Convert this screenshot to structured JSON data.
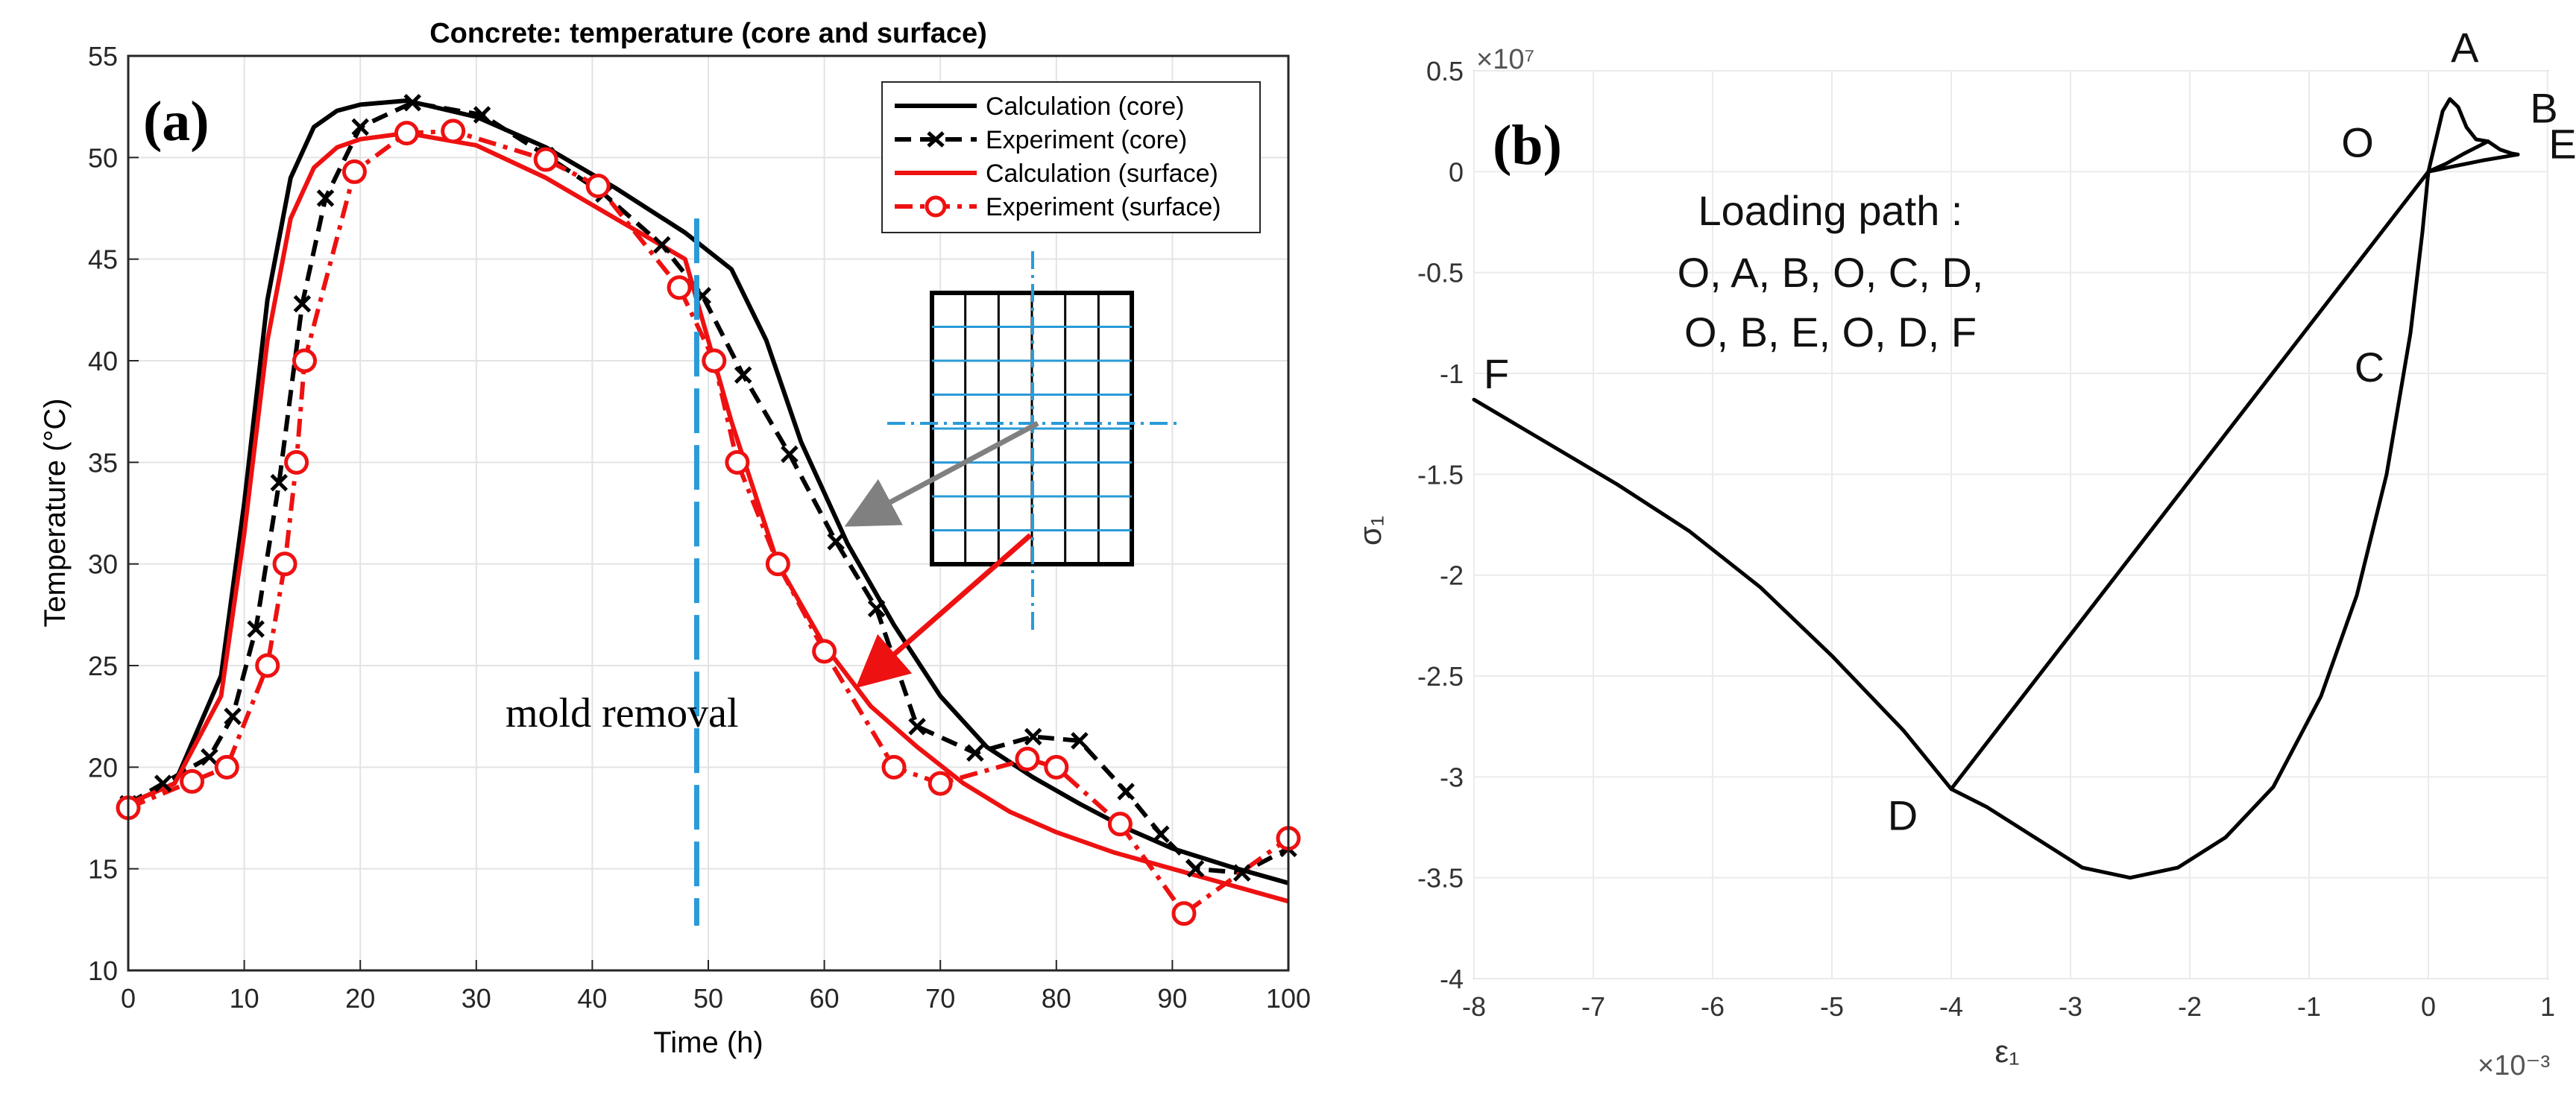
{
  "panels": [
    {
      "label": "(a)",
      "title": "Concrete: temperature (core and surface)",
      "xlabel": "Time (h)",
      "ylabel": "Temperature (°C)",
      "annotation": "mold removal"
    },
    {
      "label": "(b)",
      "xlabel": "ε₁",
      "ylabel": "σ₁",
      "x_multiplier": "×10⁻³",
      "y_multiplier": "×10⁷",
      "path_text": [
        "Loading path :",
        "O, A, B, O, C, D,",
        "O, B, E, O, D, F"
      ]
    }
  ],
  "chart_data": [
    {
      "type": "line",
      "title": "Concrete: temperature (core and surface)",
      "xlabel": "Time (h)",
      "ylabel": "Temperature (°C)",
      "xlim": [
        0,
        100
      ],
      "ylim": [
        10,
        55
      ],
      "xticks": [
        0,
        10,
        20,
        30,
        40,
        50,
        60,
        70,
        80,
        90,
        100
      ],
      "yticks": [
        10,
        15,
        20,
        25,
        30,
        35,
        40,
        45,
        50,
        55
      ],
      "grid": true,
      "legend_position": "top-right",
      "mold_removal_time": 49,
      "series": [
        {
          "name": "Calculation (core)",
          "color": "#000000",
          "style": "solid",
          "marker": "none",
          "x": [
            0,
            4,
            8,
            10,
            12,
            14,
            16,
            18,
            20,
            24,
            30,
            36,
            42,
            48,
            52,
            55,
            58,
            62,
            66,
            70,
            74,
            78,
            82,
            86,
            90,
            95,
            100
          ],
          "y": [
            18.2,
            19.2,
            24.5,
            33,
            43,
            49,
            51.5,
            52.3,
            52.6,
            52.8,
            52,
            50.5,
            48.5,
            46.3,
            44.5,
            41,
            36,
            31,
            27,
            23.5,
            21,
            19.5,
            18.2,
            17,
            16,
            15.1,
            14.3
          ]
        },
        {
          "name": "Experiment (core)",
          "color": "#000000",
          "style": "dashed",
          "marker": "x",
          "x": [
            0,
            3,
            7,
            9,
            11,
            13,
            15,
            17,
            20,
            24.5,
            30.5,
            36,
            41,
            46,
            49.5,
            53,
            57,
            61,
            64.5,
            68,
            73,
            78,
            82,
            86,
            89,
            92,
            96,
            100
          ],
          "y": [
            18.2,
            19.2,
            20.5,
            22.5,
            26.8,
            34,
            42.8,
            48,
            51.5,
            52.7,
            52.1,
            50.1,
            48.2,
            45.7,
            43.2,
            39.3,
            35.4,
            31.1,
            27.8,
            22,
            20.7,
            21.5,
            21.3,
            18.8,
            16.7,
            15,
            14.8,
            16
          ]
        },
        {
          "name": "Calculation (surface)",
          "color": "#ee1111",
          "style": "solid",
          "marker": "none",
          "x": [
            0,
            4,
            8,
            10,
            12,
            14,
            16,
            18,
            20,
            24,
            30,
            36,
            42,
            48,
            52,
            56,
            60,
            64,
            68,
            72,
            76,
            80,
            85,
            90,
            95,
            100
          ],
          "y": [
            18.2,
            19.2,
            23.5,
            31.5,
            41,
            47,
            49.5,
            50.5,
            50.9,
            51.2,
            50.6,
            49,
            47,
            45,
            37,
            30,
            26,
            23,
            21,
            19.2,
            17.8,
            16.8,
            15.8,
            15,
            14.2,
            13.4
          ]
        },
        {
          "name": "Experiment (surface)",
          "color": "#ee1111",
          "style": "dashdot",
          "marker": "o",
          "x": [
            0,
            5.5,
            8.5,
            12,
            13.5,
            14.5,
            15.2,
            19.5,
            24,
            28,
            36,
            40.5,
            47.5,
            50.5,
            52.5,
            56,
            60,
            66,
            70,
            77.5,
            80,
            85.5,
            91,
            100
          ],
          "y": [
            18,
            19.3,
            20,
            25,
            30,
            35,
            40,
            49.3,
            51.2,
            51.3,
            49.9,
            48.6,
            43.6,
            40,
            35,
            30,
            25.7,
            20,
            19.2,
            20.4,
            20,
            17.2,
            12.8,
            16.5
          ]
        }
      ]
    },
    {
      "type": "line",
      "xlabel": "ε₁ (×10⁻³)",
      "ylabel": "σ₁ (×10⁷)",
      "xlim": [
        -8,
        1
      ],
      "ylim": [
        -4,
        0.5
      ],
      "xticks": [
        -8,
        -7,
        -6,
        -5,
        -4,
        -3,
        -2,
        -1,
        0,
        1
      ],
      "yticks": [
        -4,
        -3.5,
        -3,
        -2.5,
        -2,
        -1.5,
        -1,
        -0.5,
        0,
        0.5
      ],
      "grid": true,
      "curves": [
        {
          "name": "O-A-B",
          "x": [
            0,
            0.06,
            0.12,
            0.18,
            0.25,
            0.32,
            0.4,
            0.5
          ],
          "y": [
            0,
            0.15,
            0.3,
            0.36,
            0.32,
            0.22,
            0.16,
            0.15
          ]
        },
        {
          "name": "B-O",
          "x": [
            0.5,
            0.3,
            0.15,
            0
          ],
          "y": [
            0.15,
            0.09,
            0.04,
            0
          ]
        },
        {
          "name": "O-C-D",
          "x": [
            0,
            -0.05,
            -0.15,
            -0.35,
            -0.6,
            -0.9,
            -1.3,
            -1.7,
            -2.1,
            -2.5,
            -2.9,
            -3.3,
            -3.7,
            -4
          ],
          "y": [
            0,
            -0.3,
            -0.8,
            -1.5,
            -2.1,
            -2.6,
            -3.05,
            -3.3,
            -3.45,
            -3.5,
            -3.45,
            -3.3,
            -3.15,
            -3.06
          ]
        },
        {
          "name": "D-O",
          "x": [
            -4,
            0
          ],
          "y": [
            -3.06,
            0
          ]
        },
        {
          "name": "B-E",
          "x": [
            0.5,
            0.6,
            0.7,
            0.75
          ],
          "y": [
            0.15,
            0.11,
            0.09,
            0.085
          ]
        },
        {
          "name": "E-O",
          "x": [
            0.75,
            0.45,
            0.2,
            0
          ],
          "y": [
            0.085,
            0.055,
            0.025,
            0
          ]
        },
        {
          "name": "D-F",
          "x": [
            -4,
            -4.4,
            -5,
            -5.6,
            -6.2,
            -6.8,
            -7.4,
            -8
          ],
          "y": [
            -3.06,
            -2.77,
            -2.4,
            -2.06,
            -1.78,
            -1.55,
            -1.34,
            -1.13
          ]
        }
      ],
      "points": [
        {
          "label": "A",
          "x": 0.18,
          "y": 0.36
        },
        {
          "label": "B",
          "x": 0.5,
          "y": 0.15
        },
        {
          "label": "E",
          "x": 0.75,
          "y": 0.085
        },
        {
          "label": "O",
          "x": 0,
          "y": 0
        },
        {
          "label": "C",
          "x": -0.15,
          "y": -0.8
        },
        {
          "label": "D",
          "x": -4,
          "y": -3.06
        },
        {
          "label": "F",
          "x": -8,
          "y": -1.13
        }
      ]
    }
  ]
}
